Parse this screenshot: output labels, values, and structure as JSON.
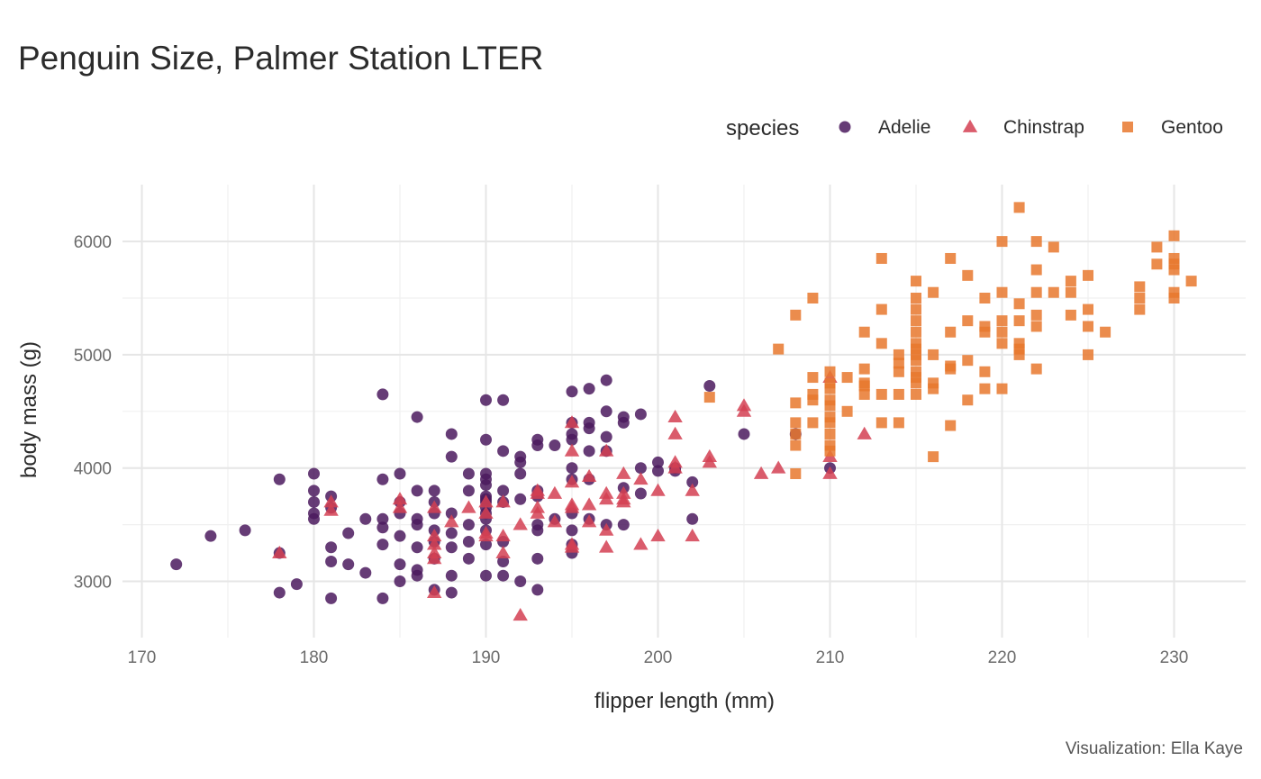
{
  "chart_data": {
    "type": "scatter",
    "title": "Penguin Size, Palmer Station LTER",
    "caption": "Visualization: Ella Kaye",
    "xlabel": "flipper length (mm)",
    "ylabel": "body mass (g)",
    "xlim": [
      169,
      232
    ],
    "ylim": [
      2700,
      6300
    ],
    "xticks": [
      170,
      180,
      190,
      200,
      210,
      220,
      230
    ],
    "yticks": [
      3000,
      4000,
      5000,
      6000
    ],
    "grid": true,
    "legend": {
      "title": "species",
      "position": "top-right"
    },
    "series": [
      {
        "name": "Adelie",
        "shape": "circle",
        "color": "#4b1a5e",
        "points": [
          [
            172,
            3150
          ],
          [
            174,
            3400
          ],
          [
            176,
            3450
          ],
          [
            178,
            3900
          ],
          [
            178,
            3250
          ],
          [
            178,
            2900
          ],
          [
            179,
            2975
          ],
          [
            180,
            3950
          ],
          [
            180,
            3800
          ],
          [
            180,
            3700
          ],
          [
            180,
            3600
          ],
          [
            180,
            3550
          ],
          [
            181,
            3750
          ],
          [
            181,
            3650
          ],
          [
            181,
            3300
          ],
          [
            181,
            3175
          ],
          [
            181,
            2850
          ],
          [
            182,
            3425
          ],
          [
            182,
            3150
          ],
          [
            183,
            3550
          ],
          [
            183,
            3075
          ],
          [
            184,
            4650
          ],
          [
            184,
            3900
          ],
          [
            184,
            3550
          ],
          [
            184,
            3475
          ],
          [
            184,
            3325
          ],
          [
            184,
            2850
          ],
          [
            185,
            3950
          ],
          [
            185,
            3700
          ],
          [
            185,
            3600
          ],
          [
            185,
            3400
          ],
          [
            185,
            3150
          ],
          [
            185,
            3000
          ],
          [
            186,
            4450
          ],
          [
            186,
            3800
          ],
          [
            186,
            3550
          ],
          [
            186,
            3500
          ],
          [
            186,
            3300
          ],
          [
            186,
            3100
          ],
          [
            186,
            3050
          ],
          [
            187,
            3800
          ],
          [
            187,
            3700
          ],
          [
            187,
            3600
          ],
          [
            187,
            3450
          ],
          [
            187,
            3350
          ],
          [
            187,
            3200
          ],
          [
            187,
            2925
          ],
          [
            188,
            4300
          ],
          [
            188,
            4100
          ],
          [
            188,
            3600
          ],
          [
            188,
            3425
          ],
          [
            188,
            3300
          ],
          [
            188,
            3050
          ],
          [
            188,
            2900
          ],
          [
            189,
            3950
          ],
          [
            189,
            3800
          ],
          [
            189,
            3500
          ],
          [
            189,
            3350
          ],
          [
            189,
            3200
          ],
          [
            190,
            4600
          ],
          [
            190,
            4250
          ],
          [
            190,
            3950
          ],
          [
            190,
            3900
          ],
          [
            190,
            3850
          ],
          [
            190,
            3750
          ],
          [
            190,
            3725
          ],
          [
            190,
            3700
          ],
          [
            190,
            3650
          ],
          [
            190,
            3600
          ],
          [
            190,
            3550
          ],
          [
            190,
            3450
          ],
          [
            190,
            3325
          ],
          [
            190,
            3050
          ],
          [
            191,
            4600
          ],
          [
            191,
            4150
          ],
          [
            191,
            3800
          ],
          [
            191,
            3700
          ],
          [
            191,
            3350
          ],
          [
            191,
            3175
          ],
          [
            191,
            3050
          ],
          [
            192,
            4100
          ],
          [
            192,
            4050
          ],
          [
            192,
            3950
          ],
          [
            192,
            3725
          ],
          [
            192,
            3000
          ],
          [
            193,
            4250
          ],
          [
            193,
            4200
          ],
          [
            193,
            3800
          ],
          [
            193,
            3750
          ],
          [
            193,
            3500
          ],
          [
            193,
            3450
          ],
          [
            193,
            3200
          ],
          [
            193,
            2925
          ],
          [
            194,
            4200
          ],
          [
            194,
            3550
          ],
          [
            195,
            4675
          ],
          [
            195,
            4400
          ],
          [
            195,
            4300
          ],
          [
            195,
            4250
          ],
          [
            195,
            4000
          ],
          [
            195,
            3900
          ],
          [
            195,
            3600
          ],
          [
            195,
            3450
          ],
          [
            195,
            3325
          ],
          [
            195,
            3250
          ],
          [
            196,
            4700
          ],
          [
            196,
            4400
          ],
          [
            196,
            4350
          ],
          [
            196,
            4150
          ],
          [
            196,
            3900
          ],
          [
            196,
            3550
          ],
          [
            197,
            4775
          ],
          [
            197,
            4500
          ],
          [
            197,
            4275
          ],
          [
            197,
            4150
          ],
          [
            197,
            3500
          ],
          [
            198,
            4450
          ],
          [
            198,
            4400
          ],
          [
            198,
            3825
          ],
          [
            198,
            3500
          ],
          [
            199,
            4475
          ],
          [
            199,
            4000
          ],
          [
            199,
            3775
          ],
          [
            200,
            4050
          ],
          [
            200,
            3975
          ],
          [
            201,
            4000
          ],
          [
            201,
            3975
          ],
          [
            202,
            3875
          ],
          [
            202,
            3550
          ],
          [
            203,
            4725
          ],
          [
            205,
            4300
          ],
          [
            208,
            4300
          ],
          [
            210,
            4000
          ]
        ]
      },
      {
        "name": "Chinstrap",
        "shape": "triangle",
        "color": "#d34052",
        "points": [
          [
            178,
            3250
          ],
          [
            181,
            3700
          ],
          [
            181,
            3625
          ],
          [
            185,
            3725
          ],
          [
            185,
            3650
          ],
          [
            187,
            3650
          ],
          [
            187,
            3400
          ],
          [
            187,
            3325
          ],
          [
            187,
            3250
          ],
          [
            187,
            3200
          ],
          [
            187,
            2900
          ],
          [
            188,
            3525
          ],
          [
            189,
            3650
          ],
          [
            190,
            3700
          ],
          [
            190,
            3600
          ],
          [
            190,
            3425
          ],
          [
            190,
            3400
          ],
          [
            191,
            3700
          ],
          [
            191,
            3400
          ],
          [
            191,
            3250
          ],
          [
            192,
            3500
          ],
          [
            192,
            2700
          ],
          [
            193,
            3800
          ],
          [
            193,
            3775
          ],
          [
            193,
            3650
          ],
          [
            193,
            3600
          ],
          [
            194,
            3775
          ],
          [
            194,
            3525
          ],
          [
            195,
            4400
          ],
          [
            195,
            4150
          ],
          [
            195,
            3875
          ],
          [
            195,
            3675
          ],
          [
            195,
            3650
          ],
          [
            195,
            3325
          ],
          [
            195,
            3300
          ],
          [
            196,
            3925
          ],
          [
            196,
            3675
          ],
          [
            196,
            3525
          ],
          [
            197,
            4150
          ],
          [
            197,
            3775
          ],
          [
            197,
            3725
          ],
          [
            197,
            3450
          ],
          [
            197,
            3300
          ],
          [
            198,
            3950
          ],
          [
            198,
            3775
          ],
          [
            198,
            3725
          ],
          [
            198,
            3700
          ],
          [
            199,
            3900
          ],
          [
            199,
            3325
          ],
          [
            200,
            3800
          ],
          [
            200,
            3400
          ],
          [
            201,
            4450
          ],
          [
            201,
            4300
          ],
          [
            201,
            4050
          ],
          [
            201,
            4000
          ],
          [
            202,
            3800
          ],
          [
            202,
            3400
          ],
          [
            203,
            4100
          ],
          [
            203,
            4050
          ],
          [
            205,
            4550
          ],
          [
            205,
            4500
          ],
          [
            206,
            3950
          ],
          [
            207,
            4000
          ],
          [
            210,
            4800
          ],
          [
            210,
            4100
          ],
          [
            210,
            3950
          ],
          [
            212,
            4300
          ]
        ]
      },
      {
        "name": "Gentoo",
        "shape": "square",
        "color": "#e8782e",
        "points": [
          [
            203,
            4625
          ],
          [
            207,
            5050
          ],
          [
            208,
            5350
          ],
          [
            208,
            4575
          ],
          [
            208,
            4400
          ],
          [
            208,
            4300
          ],
          [
            208,
            4200
          ],
          [
            208,
            3950
          ],
          [
            209,
            5500
          ],
          [
            209,
            4800
          ],
          [
            209,
            4650
          ],
          [
            209,
            4600
          ],
          [
            209,
            4400
          ],
          [
            210,
            4850
          ],
          [
            210,
            4750
          ],
          [
            210,
            4700
          ],
          [
            210,
            4600
          ],
          [
            210,
            4550
          ],
          [
            210,
            4450
          ],
          [
            210,
            4400
          ],
          [
            210,
            4300
          ],
          [
            210,
            4200
          ],
          [
            210,
            4150
          ],
          [
            211,
            4800
          ],
          [
            211,
            4500
          ],
          [
            212,
            5200
          ],
          [
            212,
            4875
          ],
          [
            212,
            4750
          ],
          [
            212,
            4725
          ],
          [
            212,
            4650
          ],
          [
            213,
            5850
          ],
          [
            213,
            5400
          ],
          [
            213,
            5100
          ],
          [
            213,
            4650
          ],
          [
            213,
            4400
          ],
          [
            214,
            5000
          ],
          [
            214,
            4925
          ],
          [
            214,
            4850
          ],
          [
            214,
            4650
          ],
          [
            214,
            4400
          ],
          [
            215,
            5650
          ],
          [
            215,
            5500
          ],
          [
            215,
            5400
          ],
          [
            215,
            5300
          ],
          [
            215,
            5200
          ],
          [
            215,
            5100
          ],
          [
            215,
            5050
          ],
          [
            215,
            5000
          ],
          [
            215,
            4950
          ],
          [
            215,
            4850
          ],
          [
            215,
            4800
          ],
          [
            215,
            4750
          ],
          [
            215,
            4650
          ],
          [
            216,
            5550
          ],
          [
            216,
            5000
          ],
          [
            216,
            4750
          ],
          [
            216,
            4700
          ],
          [
            216,
            4100
          ],
          [
            217,
            5850
          ],
          [
            217,
            5200
          ],
          [
            217,
            4900
          ],
          [
            217,
            4875
          ],
          [
            217,
            4375
          ],
          [
            218,
            5700
          ],
          [
            218,
            5300
          ],
          [
            218,
            4950
          ],
          [
            218,
            4600
          ],
          [
            219,
            5500
          ],
          [
            219,
            5250
          ],
          [
            219,
            5200
          ],
          [
            219,
            4850
          ],
          [
            219,
            4700
          ],
          [
            220,
            6000
          ],
          [
            220,
            5550
          ],
          [
            220,
            5300
          ],
          [
            220,
            5200
          ],
          [
            220,
            5100
          ],
          [
            220,
            4700
          ],
          [
            221,
            6300
          ],
          [
            221,
            5450
          ],
          [
            221,
            5300
          ],
          [
            221,
            5100
          ],
          [
            221,
            5050
          ],
          [
            221,
            5000
          ],
          [
            222,
            6000
          ],
          [
            222,
            5750
          ],
          [
            222,
            5550
          ],
          [
            222,
            5350
          ],
          [
            222,
            5250
          ],
          [
            222,
            4875
          ],
          [
            223,
            5950
          ],
          [
            223,
            5550
          ],
          [
            224,
            5650
          ],
          [
            224,
            5550
          ],
          [
            224,
            5350
          ],
          [
            225,
            5700
          ],
          [
            225,
            5400
          ],
          [
            225,
            5250
          ],
          [
            225,
            5000
          ],
          [
            226,
            5200
          ],
          [
            228,
            5600
          ],
          [
            228,
            5500
          ],
          [
            228,
            5400
          ],
          [
            229,
            5950
          ],
          [
            229,
            5800
          ],
          [
            230,
            6050
          ],
          [
            230,
            5850
          ],
          [
            230,
            5800
          ],
          [
            230,
            5750
          ],
          [
            230,
            5550
          ],
          [
            230,
            5500
          ],
          [
            231,
            5650
          ]
        ]
      }
    ]
  }
}
